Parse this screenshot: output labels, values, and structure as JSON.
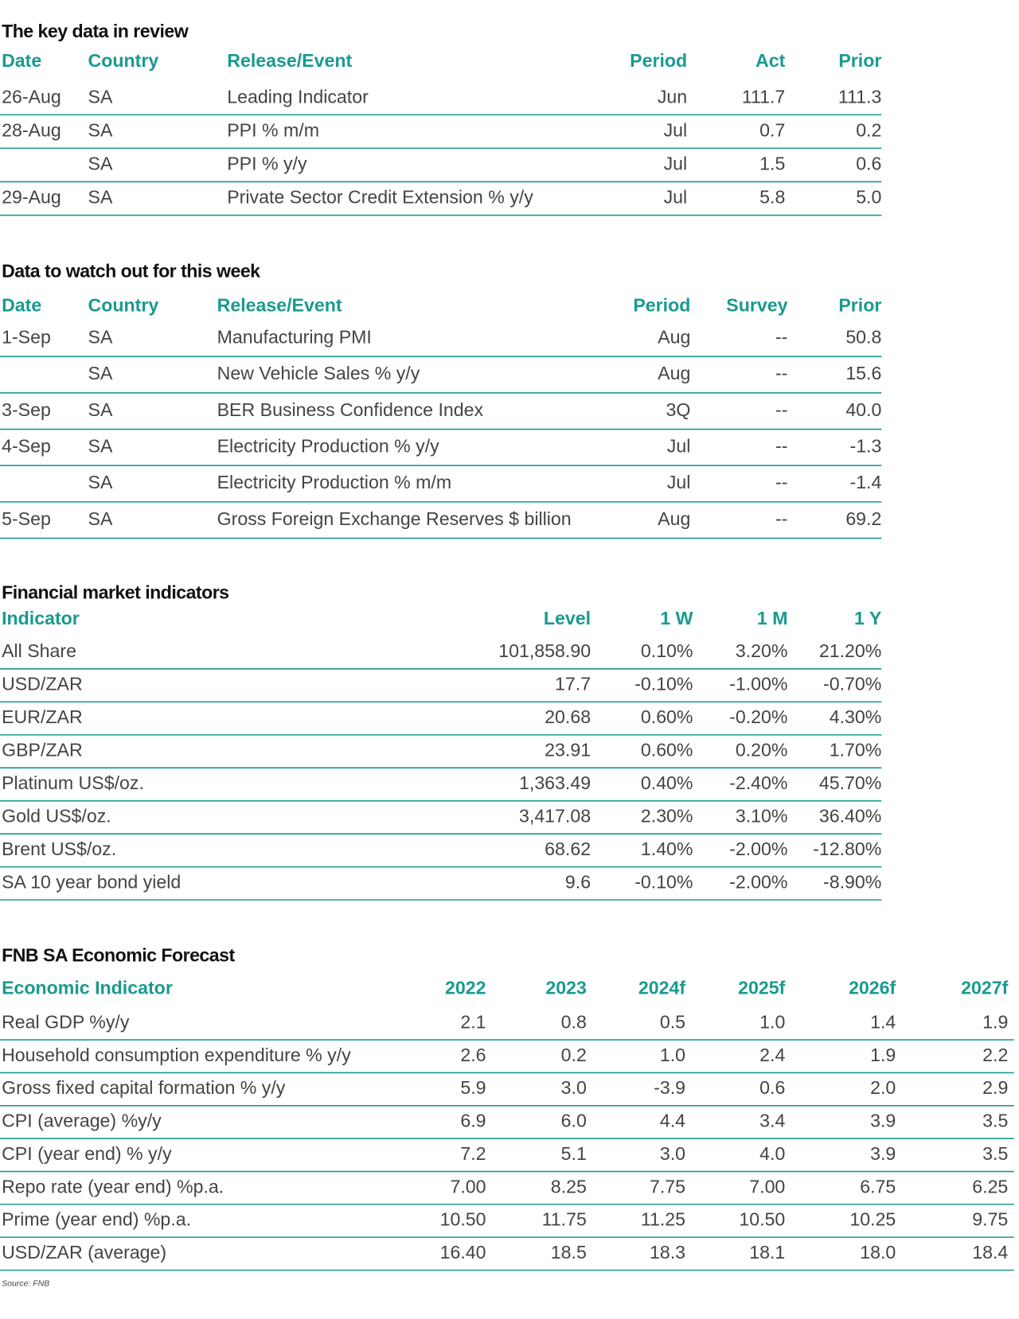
{
  "sections": [
    {
      "title": "The key data in review",
      "columns": [
        "Date",
        "Country",
        "Release/Event",
        "Period",
        "Act",
        "Prior"
      ],
      "rows": [
        [
          "26-Aug",
          "SA",
          "Leading Indicator",
          "Jun",
          "111.7",
          "111.3"
        ],
        [
          "28-Aug",
          "SA",
          "PPI % m/m",
          "Jul",
          "0.7",
          "0.2"
        ],
        [
          null,
          "SA",
          "PPI % y/y",
          "Jul",
          "1.5",
          "0.6"
        ],
        [
          "29-Aug",
          "SA",
          "Private Sector Credit Extension % y/y",
          "Jul",
          "5.8",
          "5.0"
        ]
      ]
    },
    {
      "title": "Data to watch out for this week",
      "columns": [
        "Date",
        "Country",
        "Release/Event",
        "Period",
        "Survey",
        "Prior"
      ],
      "rows": [
        [
          "1-Sep",
          "SA",
          "Manufacturing PMI",
          "Aug",
          "--",
          "50.8"
        ],
        [
          null,
          "SA",
          "New Vehicle Sales % y/y",
          "Aug",
          "--",
          "15.6"
        ],
        [
          "3-Sep",
          "SA",
          "BER Business Confidence Index",
          "3Q",
          "--",
          "40.0"
        ],
        [
          "4-Sep",
          "SA",
          "Electricity Production % y/y",
          "Jul",
          "--",
          "-1.3"
        ],
        [
          null,
          "SA",
          "Electricity Production % m/m",
          "Jul",
          "--",
          "-1.4"
        ],
        [
          "5-Sep",
          "SA",
          "Gross Foreign Exchange Reserves $ billion",
          "Aug",
          "--",
          "69.2"
        ]
      ]
    },
    {
      "title": "Financial market indicators",
      "columns": [
        "Indicator",
        "Level",
        "1 W",
        "1 M",
        "1 Y"
      ],
      "rows": [
        [
          "All Share",
          "101,858.90",
          "0.10%",
          "3.20%",
          "21.20%"
        ],
        [
          "USD/ZAR",
          "17.7",
          "-0.10%",
          "-1.00%",
          "-0.70%"
        ],
        [
          "EUR/ZAR",
          "20.68",
          "0.60%",
          "-0.20%",
          "4.30%"
        ],
        [
          "GBP/ZAR",
          "23.91",
          "0.60%",
          "0.20%",
          "1.70%"
        ],
        [
          "Platinum US$/oz.",
          "1,363.49",
          "0.40%",
          "-2.40%",
          "45.70%"
        ],
        [
          "Gold US$/oz.",
          "3,417.08",
          "2.30%",
          "3.10%",
          "36.40%"
        ],
        [
          "Brent US$/oz.",
          "68.62",
          "1.40%",
          "-2.00%",
          "-12.80%"
        ],
        [
          "SA 10 year bond yield",
          "9.6",
          "-0.10%",
          "-2.00%",
          "-8.90%"
        ]
      ]
    },
    {
      "title": "FNB SA Economic Forecast",
      "columns": [
        "Economic Indicator",
        "2022",
        "2023",
        "2024f",
        "2025f",
        "2026f",
        "2027f"
      ],
      "rows": [
        [
          "Real GDP %y/y",
          "2.1",
          "0.8",
          "0.5",
          "1.0",
          "1.4",
          "1.9"
        ],
        [
          "Household consumption expenditure % y/y",
          "2.6",
          "0.2",
          "1.0",
          "2.4",
          "1.9",
          "2.2"
        ],
        [
          "Gross fixed capital formation % y/y",
          "5.9",
          "3.0",
          "-3.9",
          "0.6",
          "2.0",
          "2.9"
        ],
        [
          "CPI (average) %y/y",
          "6.9",
          "6.0",
          "4.4",
          "3.4",
          "3.9",
          "3.5"
        ],
        [
          "CPI (year end) % y/y",
          "7.2",
          "5.1",
          "3.0",
          "4.0",
          "3.9",
          "3.5"
        ],
        [
          "Repo rate (year end) %p.a.",
          "7.00",
          "8.25",
          "7.75",
          "7.00",
          "6.75",
          "6.25"
        ],
        [
          "Prime (year end) %p.a.",
          "10.50",
          "11.75",
          "11.25",
          "10.50",
          "10.25",
          "9.75"
        ],
        [
          "USD/ZAR (average)",
          "16.40",
          "18.5",
          "18.3",
          "18.1",
          "18.0",
          "18.4"
        ]
      ]
    }
  ],
  "source": "Source: FNB"
}
